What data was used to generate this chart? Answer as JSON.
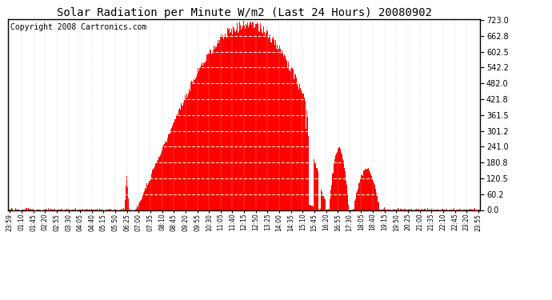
{
  "title": "Solar Radiation per Minute W/m2 (Last 24 Hours) 20080902",
  "copyright": "Copyright 2008 Cartronics.com",
  "yticks": [
    0.0,
    60.2,
    120.5,
    180.8,
    241.0,
    301.2,
    361.5,
    421.8,
    482.0,
    542.2,
    602.5,
    662.8,
    723.0
  ],
  "ymax": 723.0,
  "ymin": 0.0,
  "fill_color": "#FF0000",
  "bg_color": "#FFFFFF",
  "grid_color": "#C0C0C0",
  "title_fontsize": 10,
  "copyright_fontsize": 7,
  "xtick_labels": [
    "23:59",
    "01:10",
    "01:45",
    "02:20",
    "02:55",
    "03:30",
    "04:05",
    "04:40",
    "05:15",
    "05:50",
    "06:25",
    "07:00",
    "07:35",
    "08:10",
    "08:45",
    "09:20",
    "09:55",
    "10:30",
    "11:05",
    "11:40",
    "12:15",
    "12:50",
    "13:25",
    "14:00",
    "14:35",
    "15:10",
    "15:45",
    "16:20",
    "16:55",
    "17:30",
    "18:05",
    "18:40",
    "19:15",
    "19:50",
    "20:25",
    "21:00",
    "21:35",
    "22:10",
    "22:45",
    "23:20",
    "23:55"
  ]
}
